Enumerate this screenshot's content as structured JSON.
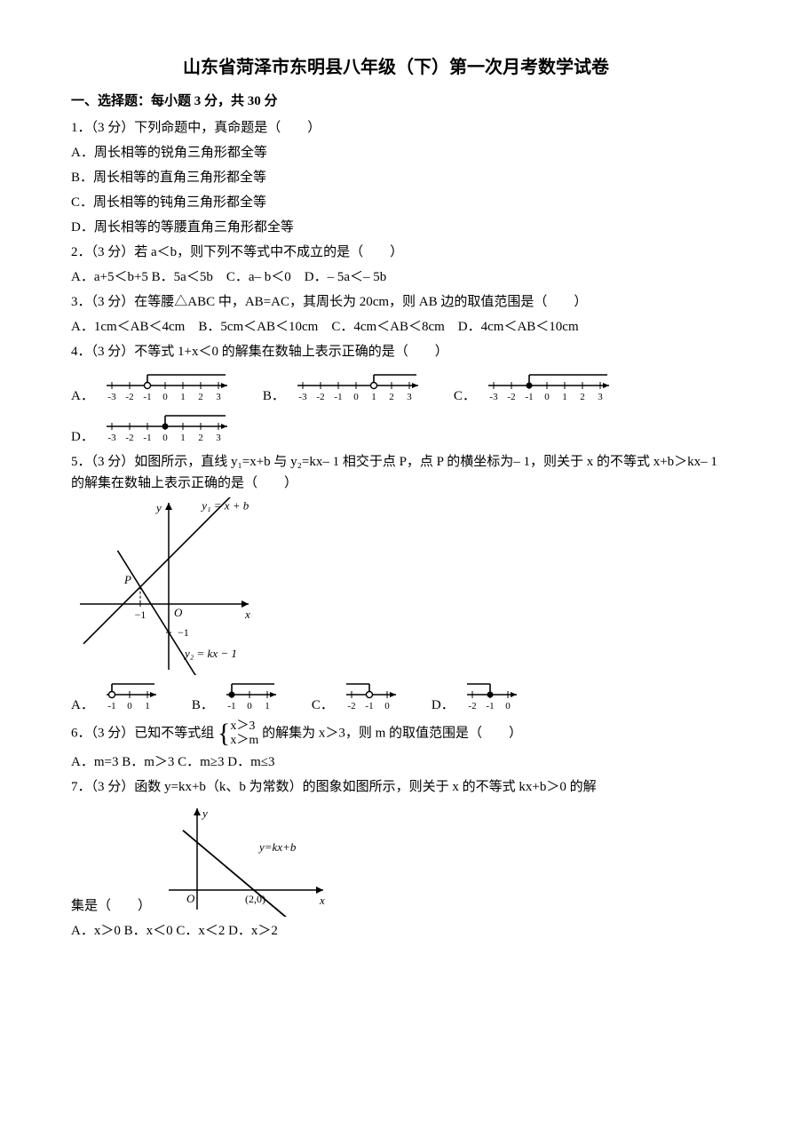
{
  "title": "山东省菏泽市东明县八年级（下）第一次月考数学试卷",
  "section1": "一、选择题：每小题 3 分，共 30 分",
  "q1": {
    "stem": "1．（3 分）下列命题中，真命题是（　　）",
    "A": "A．周长相等的锐角三角形都全等",
    "B": "B．周长相等的直角三角形都全等",
    "C": "C．周长相等的钝角三角形都全等",
    "D": "D．周长相等的等腰直角三角形都全等"
  },
  "q2": {
    "stem": "2．（3 分）若 a＜b，则下列不等式中不成立的是（　　）",
    "opts": "A．a+5＜b+5  B．5a＜5b　C．a– b＜0　D．– 5a＜– 5b"
  },
  "q3": {
    "stem": "3．（3 分）在等腰△ABC 中，AB=AC，其周长为 20cm，则 AB 边的取值范围是（　　）",
    "opts": "A．1cm＜AB＜4cm　B．5cm＜AB＜10cm　C．4cm＜AB＜8cm　D．4cm＜AB＜10cm"
  },
  "q4": {
    "stem": "4．（3 分）不等式 1+x＜0 的解集在数轴上表示正确的是（　　）",
    "options": [
      {
        "label": "A．",
        "type": "numline",
        "open": true,
        "filled": false,
        "boundary": -1,
        "direction": "right",
        "ticks": [
          -3,
          -2,
          -1,
          0,
          1,
          2,
          3
        ]
      },
      {
        "label": "B．",
        "type": "numline",
        "open": true,
        "filled": false,
        "boundary": 1,
        "direction": "right",
        "ticks": [
          -3,
          -2,
          -1,
          0,
          1,
          2,
          3
        ]
      },
      {
        "label": "C．",
        "type": "numline",
        "open": false,
        "filled": true,
        "boundary": -1,
        "direction": "right",
        "ticks": [
          -3,
          -2,
          -1,
          0,
          1,
          2,
          3
        ]
      },
      {
        "label": "D．",
        "type": "numline",
        "open": false,
        "filled": true,
        "boundary": 0,
        "direction": "right",
        "ticks": [
          -3,
          -2,
          -1,
          0,
          1,
          2,
          3
        ]
      }
    ]
  },
  "q5": {
    "stem": "5．（3 分）如图所示，直线 y₁=x+b 与 y₂=kx– 1 相交于点 P，点 P 的横坐标为– 1，则关于 x 的不等式 x+b＞kx– 1 的解集在数轴上表示正确的是（　　）",
    "graph": {
      "line1_label": "y₁ = x + b",
      "line2_label": "y₂ = kx − 1",
      "P_label": "P",
      "O_label": "O",
      "x_label": "x",
      "y_label": "y",
      "neg1x": "−1",
      "neg1y": "−1"
    },
    "options": [
      {
        "label": "A．",
        "type": "numline",
        "open": true,
        "filled": false,
        "boundary": -1,
        "direction": "right",
        "ticks": [
          -1,
          0,
          1
        ]
      },
      {
        "label": "B．",
        "type": "numline",
        "open": false,
        "filled": true,
        "boundary": -1,
        "direction": "right",
        "ticks": [
          -1,
          0,
          1
        ]
      },
      {
        "label": "C．",
        "type": "numline",
        "open": true,
        "filled": false,
        "boundary": -1,
        "direction": "left",
        "ticks": [
          -2,
          -1,
          0
        ]
      },
      {
        "label": "D．",
        "type": "numline",
        "open": false,
        "filled": true,
        "boundary": -1,
        "direction": "left",
        "ticks": [
          -2,
          -1,
          0
        ]
      }
    ]
  },
  "q6": {
    "pre": "6．（3 分）已知不等式组",
    "sys_top": "x＞3",
    "sys_bot": "x＞m",
    "post": "的解集为 x＞3，则 m 的取值范围是（　　）",
    "opts": "A．m=3  B．m＞3  C．m≥3  D．m≤3"
  },
  "q7": {
    "stem": "7．（3 分）函数 y=kx+b（k、b 为常数）的图象如图所示，则关于 x 的不等式 kx+b＞0 的解",
    "postfig": "集是（　　）",
    "graph": {
      "line_label": "y=kx+b",
      "O_label": "O",
      "pt_label": "(2,0)",
      "x_label": "x",
      "y_label": "y"
    },
    "opts": "A．x＞0  B．x＜0  C．x＜2  D．x＞2"
  },
  "style": {
    "axis_color": "#000000",
    "line_color": "#000000",
    "fill_open": "#ffffff",
    "font": "SimSun"
  }
}
